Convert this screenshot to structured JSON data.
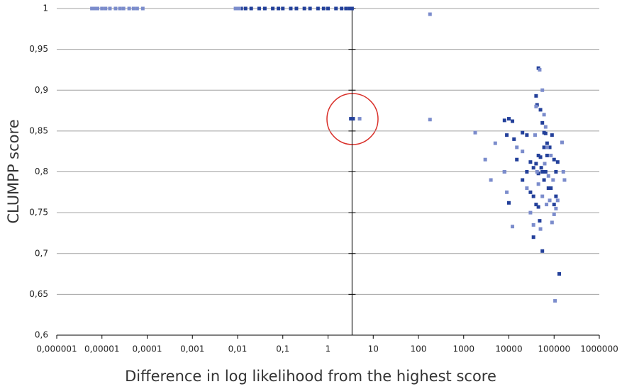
{
  "chart_data": {
    "type": "scatter",
    "x_label": "Difference in log likelihood from the highest score",
    "y_label": "CLUMPP score",
    "xscale": "log",
    "xlim": [
      1e-06,
      1000000
    ],
    "ylim": [
      0.6,
      1
    ],
    "y_axis_crossing": 3.4,
    "grid": true,
    "xticks": [
      {
        "value": 1e-06,
        "label": "0,000001"
      },
      {
        "value": 1e-05,
        "label": "0,00001"
      },
      {
        "value": 0.0001,
        "label": "0,0001"
      },
      {
        "value": 0.001,
        "label": "0,001"
      },
      {
        "value": 0.01,
        "label": "0,01"
      },
      {
        "value": 0.1,
        "label": "0,1"
      },
      1,
      10,
      100,
      1000,
      10000,
      100000,
      1000000
    ],
    "yticks": [
      {
        "value": 0.6,
        "label": "0,6"
      },
      {
        "value": 0.65,
        "label": "0,65"
      },
      {
        "value": 0.7,
        "label": "0,7"
      },
      {
        "value": 0.75,
        "label": "0,75"
      },
      {
        "value": 0.8,
        "label": "0,8"
      },
      {
        "value": 0.85,
        "label": "0,85"
      },
      {
        "value": 0.9,
        "label": "0,9"
      },
      {
        "value": 0.95,
        "label": "0,95"
      },
      1
    ],
    "series": [
      {
        "color": "#23409a",
        "x": [
          0.012,
          0.015,
          0.02,
          0.03,
          0.04,
          0.06,
          0.08,
          0.1,
          0.15,
          0.2,
          0.3,
          0.4,
          0.6,
          0.8,
          1,
          1.5,
          2,
          2.5,
          3,
          3.4,
          3.2,
          3.6,
          8000,
          10000,
          12000,
          9000,
          13000,
          20000,
          25000,
          40000,
          45000,
          42000,
          50000,
          55000,
          60000,
          65000,
          80000,
          100000,
          110000,
          70000,
          30000,
          35000,
          40000,
          45000,
          50000,
          55000,
          60000,
          65000,
          75000,
          85000,
          30000,
          35000,
          40000,
          45000,
          55000,
          100000,
          110000,
          130000,
          10000,
          8000,
          15000,
          20000,
          25000,
          90000,
          45000,
          52000,
          60000,
          70000,
          120000,
          35000,
          48000
        ],
        "values": [
          1,
          1,
          1,
          1,
          1,
          1,
          1,
          1,
          1,
          1,
          1,
          1,
          1,
          1,
          1,
          1,
          1,
          1,
          1,
          1,
          0.865,
          0.865,
          0.863,
          0.865,
          0.862,
          0.845,
          0.84,
          0.848,
          0.845,
          0.893,
          0.927,
          0.882,
          0.876,
          0.86,
          0.848,
          0.847,
          0.83,
          0.815,
          0.8,
          0.82,
          0.812,
          0.805,
          0.81,
          0.82,
          0.818,
          0.8,
          0.79,
          0.8,
          0.78,
          0.78,
          0.775,
          0.77,
          0.76,
          0.757,
          0.703,
          0.76,
          0.77,
          0.675,
          0.762,
          0.8,
          0.815,
          0.79,
          0.8,
          0.845,
          0.798,
          0.805,
          0.83,
          0.835,
          0.812,
          0.72,
          0.74
        ]
      },
      {
        "color": "#7b8ccc",
        "x": [
          6e-06,
          7e-06,
          8e-06,
          1e-05,
          1.2e-05,
          1.5e-05,
          2e-05,
          2.5e-05,
          3e-05,
          4e-05,
          5e-05,
          6e-05,
          8e-05,
          0.009,
          0.01,
          0.011,
          5,
          180,
          180,
          1800,
          3000,
          4000,
          5000,
          8000,
          9000,
          12000,
          15000,
          20000,
          25000,
          30000,
          35000,
          40000,
          48000,
          55000,
          60000,
          65000,
          70000,
          75000,
          80000,
          90000,
          100000,
          105000,
          110000,
          120000,
          150000,
          170000,
          160000,
          45000,
          50000,
          55000,
          38000,
          42000,
          62000,
          68000,
          85000,
          95000
        ],
        "values": [
          1,
          1,
          1,
          1,
          1,
          1,
          1,
          1,
          1,
          1,
          1,
          1,
          1,
          1,
          1,
          1,
          0.865,
          0.993,
          0.864,
          0.848,
          0.815,
          0.79,
          0.835,
          0.8,
          0.775,
          0.733,
          0.83,
          0.825,
          0.78,
          0.75,
          0.735,
          0.88,
          0.925,
          0.9,
          0.87,
          0.855,
          0.83,
          0.795,
          0.765,
          0.738,
          0.748,
          0.642,
          0.755,
          0.765,
          0.836,
          0.79,
          0.8,
          0.785,
          0.73,
          0.77,
          0.845,
          0.8,
          0.81,
          0.76,
          0.82,
          0.79
        ]
      }
    ]
  }
}
